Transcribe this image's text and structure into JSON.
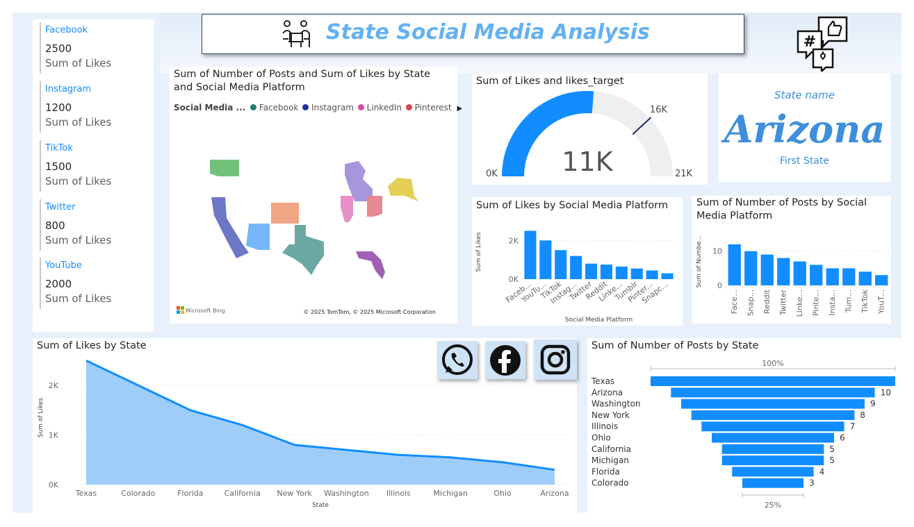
{
  "header": {
    "title": "State Social Media Analysis"
  },
  "kpis": [
    {
      "platform": "Facebook",
      "value": "2500",
      "label": "Sum of Likes"
    },
    {
      "platform": "Instagram",
      "value": "1200",
      "label": "Sum of Likes"
    },
    {
      "platform": "TikTok",
      "value": "1500",
      "label": "Sum of Likes"
    },
    {
      "platform": "Twitter",
      "value": "800",
      "label": "Sum of Likes"
    },
    {
      "platform": "YouTube",
      "value": "2000",
      "label": "Sum of Likes"
    }
  ],
  "map": {
    "title": "Sum of Number of Posts and Sum of Likes by State and Social Media Platform",
    "legend_title": "Social Media ...",
    "legend": [
      {
        "name": "Facebook",
        "color": "#1a7f7a"
      },
      {
        "name": "Instagram",
        "color": "#1c2f9a"
      },
      {
        "name": "LinkedIn",
        "color": "#d64ca8"
      },
      {
        "name": "Pinterest",
        "color": "#d64550"
      }
    ],
    "brand": "Microsoft Bing",
    "copyright": "© 2025 TomTom, © 2025 Microsoft Corporation"
  },
  "gauge": {
    "title": "Sum of Likes and likes_target",
    "value_label": "11K",
    "min_label": "0K",
    "max_label": "21K",
    "target_label": "16K"
  },
  "card_state": {
    "caption": "State name",
    "value": "Arizona",
    "footer": "First State"
  },
  "icons": [
    "whatsapp-icon",
    "facebook-icon",
    "instagram-icon",
    "hashtag-social-icon",
    "people-laptop-icon"
  ],
  "chart_data": [
    {
      "id": "gauge",
      "type": "gauge",
      "value": 11000,
      "min": 0,
      "max": 21000,
      "target": 16000
    },
    {
      "id": "likes_by_platform",
      "type": "bar",
      "title": "Sum of Likes by Social Media Platform",
      "xlabel": "Social Media Platform",
      "ylabel": "Sum of Likes",
      "categories": [
        "Faceb...",
        "YouTu...",
        "TikTok",
        "Instag...",
        "Twitter",
        "Reddit",
        "Linke...",
        "Tumblr",
        "Pinter...",
        "Snapc..."
      ],
      "values": [
        2500,
        2000,
        1500,
        1200,
        800,
        750,
        650,
        550,
        450,
        300
      ],
      "yticks": [
        "0K",
        "2K"
      ],
      "ylim": [
        0,
        2800
      ]
    },
    {
      "id": "posts_by_platform",
      "type": "bar",
      "title": "Sum of Number of Posts by Social Media Platform",
      "xlabel": "",
      "ylabel": "Sum of Numbe...",
      "categories": [
        "Face...",
        "Snap...",
        "Reddit",
        "Twitter",
        "Linke...",
        "Pinte...",
        "Insta...",
        "Tum...",
        "TikTok",
        "YouT..."
      ],
      "values": [
        12,
        10,
        9,
        8,
        7,
        6,
        5,
        5,
        4,
        3
      ],
      "yticks": [
        "0",
        "10"
      ],
      "ylim": [
        0,
        14
      ]
    },
    {
      "id": "likes_by_state",
      "type": "area",
      "title": "Sum of Likes by State",
      "xlabel": "State",
      "ylabel": "Sum of Likes",
      "categories": [
        "Texas",
        "Colorado",
        "Florida",
        "California",
        "New York",
        "Washington",
        "Illinois",
        "Michigan",
        "Ohio",
        "Arizona"
      ],
      "values": [
        2500,
        2000,
        1500,
        1200,
        800,
        700,
        600,
        550,
        450,
        300
      ],
      "yticks": [
        "0K",
        "1K",
        "2K"
      ],
      "ylim": [
        0,
        2700
      ]
    },
    {
      "id": "posts_by_state",
      "type": "funnel",
      "title": "Sum of Number of Posts by State",
      "categories": [
        "Texas",
        "Arizona",
        "Washington",
        "New York",
        "Illinois",
        "Ohio",
        "California",
        "Michigan",
        "Florida",
        "Colorado"
      ],
      "values": [
        12,
        10,
        9,
        8,
        7,
        6,
        5,
        5,
        4,
        3
      ],
      "top_percent": "100%",
      "bottom_percent": "25%"
    }
  ]
}
